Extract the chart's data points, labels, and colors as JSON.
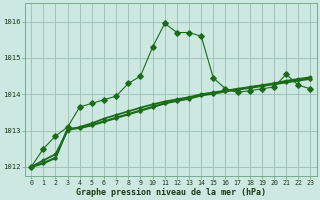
{
  "xlabel": "Graphe pression niveau de la mer (hPa)",
  "x": [
    0,
    1,
    2,
    3,
    4,
    5,
    6,
    7,
    8,
    9,
    10,
    11,
    12,
    13,
    14,
    15,
    16,
    17,
    18,
    19,
    20,
    21,
    22,
    23
  ],
  "line1": [
    1012.0,
    1012.5,
    1012.85,
    1013.1,
    1013.65,
    1013.75,
    1013.85,
    1013.95,
    1014.3,
    1014.5,
    1015.3,
    1015.95,
    1015.7,
    1015.7,
    1015.6,
    1014.45,
    1014.15,
    1014.05,
    1014.1,
    1014.15,
    1014.2,
    1014.55,
    1014.25,
    1014.15
  ],
  "line2": [
    1012.0,
    1012.1,
    1012.25,
    1013.05,
    1013.07,
    1013.15,
    1013.25,
    1013.35,
    1013.45,
    1013.55,
    1013.65,
    1013.75,
    1013.82,
    1013.88,
    1013.97,
    1014.02,
    1014.08,
    1014.13,
    1014.18,
    1014.23,
    1014.28,
    1014.33,
    1014.38,
    1014.43
  ],
  "line3": [
    1012.0,
    1012.18,
    1012.35,
    1013.0,
    1013.1,
    1013.2,
    1013.33,
    1013.43,
    1013.53,
    1013.63,
    1013.72,
    1013.8,
    1013.86,
    1013.92,
    1014.0,
    1014.05,
    1014.1,
    1014.15,
    1014.2,
    1014.25,
    1014.3,
    1014.37,
    1014.42,
    1014.47
  ],
  "line_color": "#1a6b1a",
  "bg_color": "#cde8e0",
  "grid_color": "#9bbfb2",
  "ylim": [
    1011.75,
    1016.5
  ],
  "yticks": [
    1012,
    1013,
    1014,
    1015,
    1016
  ],
  "xtick_labels": [
    "0",
    "1",
    "2",
    "3",
    "4",
    "5",
    "6",
    "7",
    "8",
    "9",
    "10",
    "11",
    "12",
    "13",
    "14",
    "15",
    "16",
    "17",
    "18",
    "19",
    "20",
    "21",
    "22",
    "23"
  ]
}
